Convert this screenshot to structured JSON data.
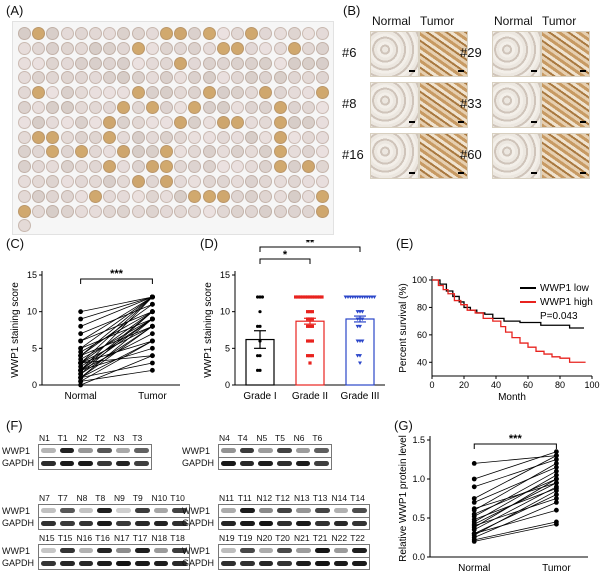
{
  "panels": {
    "A": {
      "label": "(A)"
    },
    "B": {
      "label": "(B)",
      "col_normal": "Normal",
      "col_tumor": "Tumor",
      "left_cases": [
        "#6",
        "#8",
        "#16"
      ],
      "right_cases": [
        "#29",
        "#33",
        "#60"
      ]
    },
    "C": {
      "label": "(C)"
    },
    "D": {
      "label": "(D)"
    },
    "E": {
      "label": "(E)"
    },
    "F": {
      "label": "(F)"
    },
    "G": {
      "label": "(G)"
    }
  },
  "chart_data": [
    {
      "id": "C",
      "type": "paired-line",
      "ylabel": "WWP1 staining score",
      "categories": [
        "Normal",
        "Tumor"
      ],
      "yticks": [
        0,
        5,
        10,
        15
      ],
      "ylim": [
        0,
        15
      ],
      "significance": "***",
      "pairs": [
        [
          0,
          4
        ],
        [
          0.5,
          6
        ],
        [
          1,
          6
        ],
        [
          1,
          8
        ],
        [
          1,
          9
        ],
        [
          1.5,
          8
        ],
        [
          1.5,
          10
        ],
        [
          2,
          7
        ],
        [
          2,
          9
        ],
        [
          2,
          10
        ],
        [
          2,
          12
        ],
        [
          2.5,
          9
        ],
        [
          3,
          6
        ],
        [
          3,
          8
        ],
        [
          3,
          10
        ],
        [
          3,
          12
        ],
        [
          3.5,
          9
        ],
        [
          4,
          8
        ],
        [
          4,
          11
        ],
        [
          4,
          12
        ],
        [
          4.5,
          10
        ],
        [
          5,
          9
        ],
        [
          5,
          12
        ],
        [
          6,
          10
        ],
        [
          6,
          12
        ],
        [
          7,
          11
        ],
        [
          8,
          12
        ],
        [
          9,
          12
        ],
        [
          10,
          12
        ],
        [
          0.5,
          2
        ],
        [
          1,
          3
        ],
        [
          2,
          5
        ],
        [
          3,
          4
        ]
      ]
    },
    {
      "id": "D",
      "type": "bar",
      "ylabel": "WWP1 staining score",
      "categories": [
        "Grade I",
        "Grade II",
        "Grade III"
      ],
      "values": [
        6.2,
        8.7,
        9.0
      ],
      "errors": [
        1.2,
        0.4,
        0.4
      ],
      "colors": [
        "#000000",
        "#e8231f",
        "#2a45c9"
      ],
      "yticks": [
        0,
        5,
        10,
        15
      ],
      "ylim": [
        0,
        15
      ],
      "significance": [
        {
          "from": "Grade I",
          "to": "Grade II",
          "label": "*"
        },
        {
          "from": "Grade I",
          "to": "Grade III",
          "label": "**"
        }
      ],
      "points": [
        [
          12,
          12,
          12,
          10,
          8,
          8,
          6,
          4,
          4,
          2,
          2
        ],
        [
          12,
          12,
          12,
          12,
          12,
          12,
          12,
          12,
          12,
          12,
          12,
          12,
          10,
          10,
          10,
          9,
          9,
          9,
          8,
          8,
          8,
          6,
          6,
          6,
          4,
          4,
          4,
          3
        ],
        [
          12,
          12,
          12,
          12,
          12,
          12,
          12,
          12,
          12,
          12,
          12,
          12,
          12,
          10,
          10,
          10,
          9,
          9,
          9,
          8,
          8,
          6,
          6,
          6,
          4,
          4,
          3
        ]
      ]
    },
    {
      "id": "E",
      "type": "line",
      "ylabel": "Percent survival (%)",
      "xlabel": "Month",
      "xticks": [
        0,
        20,
        40,
        60,
        80,
        100
      ],
      "yticks": [
        40,
        60,
        80,
        100
      ],
      "xlim": [
        0,
        100
      ],
      "ylim": [
        30,
        100
      ],
      "legend_position": "top-right",
      "pvalue": "P=0.043",
      "series": [
        {
          "name": "WWP1 low",
          "color": "#000000",
          "x": [
            0,
            5,
            9,
            13,
            17,
            20,
            24,
            28,
            33,
            38,
            45,
            55,
            68,
            80,
            86,
            95
          ],
          "y": [
            100,
            97,
            92,
            88,
            84,
            80,
            78,
            76,
            75,
            72,
            70,
            69,
            67,
            67,
            65,
            65
          ]
        },
        {
          "name": "WWP1 high",
          "color": "#e8231f",
          "x": [
            0,
            4,
            7,
            10,
            14,
            18,
            22,
            27,
            32,
            38,
            43,
            46,
            50,
            55,
            60,
            65,
            70,
            75,
            80,
            86,
            92,
            96
          ],
          "y": [
            100,
            96,
            93,
            90,
            85,
            82,
            78,
            76,
            72,
            70,
            66,
            62,
            58,
            54,
            51,
            48,
            46,
            44,
            43,
            40,
            40,
            40
          ]
        }
      ]
    },
    {
      "id": "G",
      "type": "paired-line",
      "ylabel": "Relative WWP1 protein level",
      "categories": [
        "Normal",
        "Tumor"
      ],
      "yticks": [
        0.0,
        0.5,
        1.0,
        1.5
      ],
      "ylim": [
        0,
        1.5
      ],
      "significance": "***",
      "pairs": [
        [
          0.2,
          0.42
        ],
        [
          0.22,
          0.45
        ],
        [
          0.25,
          0.7
        ],
        [
          0.28,
          0.85
        ],
        [
          0.3,
          0.8
        ],
        [
          0.35,
          0.9
        ],
        [
          0.38,
          1.0
        ],
        [
          0.42,
          0.95
        ],
        [
          0.45,
          1.05
        ],
        [
          0.48,
          0.88
        ],
        [
          0.52,
          1.1
        ],
        [
          0.55,
          1.0
        ],
        [
          0.6,
          1.2
        ],
        [
          0.62,
          0.95
        ],
        [
          0.7,
          1.15
        ],
        [
          0.75,
          1.3
        ],
        [
          0.9,
          1.25
        ],
        [
          1.0,
          1.35
        ],
        [
          1.2,
          1.3
        ],
        [
          0.3,
          0.6
        ],
        [
          0.4,
          0.75
        ]
      ]
    }
  ],
  "blots": {
    "row_labels": [
      "WWP1",
      "GAPDH"
    ],
    "left": [
      [
        "N1",
        "T1",
        "N2",
        "T2",
        "N3",
        "T3"
      ],
      [
        "N7",
        "T7",
        "N8",
        "T8",
        "N9",
        "T9",
        "N10",
        "T10"
      ],
      [
        "N15",
        "T15",
        "N16",
        "T16",
        "N17",
        "T17",
        "N18",
        "T18"
      ]
    ],
    "right": [
      [
        "N4",
        "T4",
        "N5",
        "T5",
        "N6",
        "T6"
      ],
      [
        "N11",
        "T11",
        "N12",
        "T12",
        "N13",
        "T13",
        "N14",
        "T14"
      ],
      [
        "N19",
        "T19",
        "N20",
        "T20",
        "N21",
        "T21",
        "N22",
        "T22"
      ]
    ]
  }
}
